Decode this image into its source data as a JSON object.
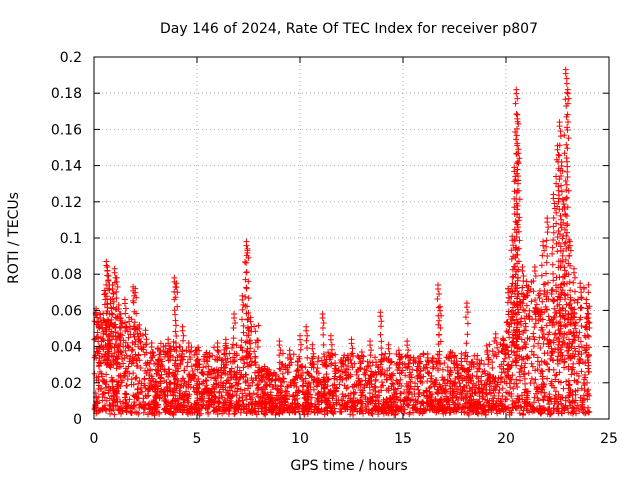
{
  "chart_data": {
    "type": "scatter",
    "title": "Day 146 of 2024, Rate Of TEC Index for receiver p807",
    "xlabel": "GPS time / hours",
    "ylabel": "ROTI / TECUs",
    "xlim": [
      0,
      25
    ],
    "ylim": [
      0,
      0.2
    ],
    "xticks": [
      0,
      5,
      10,
      15,
      20,
      25
    ],
    "yticks": [
      0,
      0.02,
      0.04,
      0.06,
      0.08,
      0.1,
      0.12,
      0.14,
      0.16,
      0.18,
      0.2
    ],
    "xtick_labels": [
      "0",
      "5",
      "10",
      "15",
      "20",
      "25"
    ],
    "ytick_labels": [
      "0",
      "0.02",
      "0.04",
      "0.06",
      "0.08",
      "0.1",
      "0.12",
      "0.14",
      "0.16",
      "0.18",
      "0.2"
    ],
    "grid": true,
    "marker": "+",
    "color": "#ff0000",
    "series": [
      {
        "points": [
          [
            0.1,
            0.061
          ],
          [
            0.2,
            0.045
          ],
          [
            0.3,
            0.058
          ],
          [
            0.4,
            0.052
          ],
          [
            0.5,
            0.071
          ],
          [
            0.6,
            0.087
          ],
          [
            0.65,
            0.084
          ],
          [
            0.7,
            0.079
          ],
          [
            0.8,
            0.066
          ],
          [
            0.9,
            0.074
          ],
          [
            1.0,
            0.083
          ],
          [
            1.1,
            0.078
          ],
          [
            1.2,
            0.063
          ],
          [
            1.3,
            0.058
          ],
          [
            1.5,
            0.066
          ],
          [
            1.7,
            0.056
          ],
          [
            1.9,
            0.073
          ],
          [
            2.0,
            0.072
          ],
          [
            2.2,
            0.052
          ],
          [
            2.5,
            0.049
          ],
          [
            2.8,
            0.042
          ],
          [
            3.2,
            0.038
          ],
          [
            3.6,
            0.044
          ],
          [
            3.9,
            0.078
          ],
          [
            4.0,
            0.075
          ],
          [
            4.3,
            0.051
          ],
          [
            4.6,
            0.042
          ],
          [
            5.0,
            0.038
          ],
          [
            5.5,
            0.034
          ],
          [
            6.0,
            0.042
          ],
          [
            6.4,
            0.044
          ],
          [
            6.8,
            0.058
          ],
          [
            7.2,
            0.068
          ],
          [
            7.4,
            0.098
          ],
          [
            7.45,
            0.094
          ],
          [
            7.6,
            0.056
          ],
          [
            8.0,
            0.026
          ],
          [
            8.5,
            0.024
          ],
          [
            9.0,
            0.043
          ],
          [
            9.5,
            0.038
          ],
          [
            10.0,
            0.046
          ],
          [
            10.3,
            0.051
          ],
          [
            10.6,
            0.041
          ],
          [
            11.1,
            0.058
          ],
          [
            11.5,
            0.046
          ],
          [
            12.0,
            0.031
          ],
          [
            12.5,
            0.044
          ],
          [
            13.0,
            0.037
          ],
          [
            13.4,
            0.043
          ],
          [
            13.9,
            0.059
          ],
          [
            14.3,
            0.041
          ],
          [
            14.8,
            0.038
          ],
          [
            15.2,
            0.043
          ],
          [
            15.7,
            0.029
          ],
          [
            16.2,
            0.036
          ],
          [
            16.7,
            0.074
          ],
          [
            16.8,
            0.062
          ],
          [
            17.3,
            0.037
          ],
          [
            17.6,
            0.032
          ],
          [
            18.1,
            0.064
          ],
          [
            18.6,
            0.033
          ],
          [
            19.1,
            0.038
          ],
          [
            19.5,
            0.047
          ],
          [
            19.9,
            0.041
          ],
          [
            20.1,
            0.072
          ],
          [
            20.3,
            0.101
          ],
          [
            20.4,
            0.139
          ],
          [
            20.5,
            0.182
          ],
          [
            20.55,
            0.168
          ],
          [
            20.6,
            0.149
          ],
          [
            20.8,
            0.084
          ],
          [
            21.0,
            0.076
          ],
          [
            21.4,
            0.084
          ],
          [
            21.8,
            0.098
          ],
          [
            22.0,
            0.111
          ],
          [
            22.3,
            0.124
          ],
          [
            22.5,
            0.151
          ],
          [
            22.6,
            0.164
          ],
          [
            22.7,
            0.142
          ],
          [
            22.8,
            0.121
          ],
          [
            22.9,
            0.193
          ],
          [
            23.0,
            0.182
          ],
          [
            23.1,
            0.098
          ],
          [
            23.3,
            0.083
          ],
          [
            23.6,
            0.075
          ],
          [
            23.9,
            0.066
          ],
          [
            24.0,
            0.058
          ]
        ]
      }
    ]
  }
}
